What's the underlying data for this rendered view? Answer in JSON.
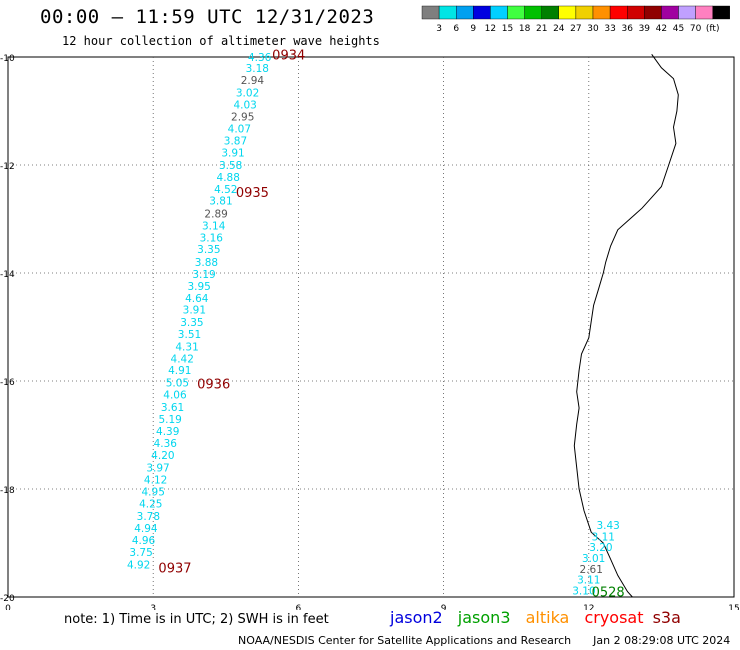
{
  "title": "00:00 – 11:59 UTC 12/31/2023",
  "subtitle": "12 hour collection of altimeter wave heights",
  "colorbar": {
    "colors": [
      "#7f7f7f",
      "#00e5e5",
      "#00a0f0",
      "#0000e0",
      "#00d0ff",
      "#40ff40",
      "#00c000",
      "#008000",
      "#ffff00",
      "#f0d000",
      "#ff9000",
      "#ff0000",
      "#d00000",
      "#900000",
      "#a000a0",
      "#c0a0ff",
      "#ff80c0",
      "#000000"
    ],
    "labels": [
      "3",
      "6",
      "9",
      "12",
      "15",
      "18",
      "21",
      "24",
      "27",
      "30",
      "33",
      "36",
      "39",
      "42",
      "45",
      "70",
      "(ft)"
    ]
  },
  "axes": {
    "x_ticks": [
      "0",
      "3",
      "6",
      "9",
      "12",
      "15"
    ],
    "y_ticks": [
      "-10",
      "-12",
      "-14",
      "-16",
      "-18",
      "-20"
    ]
  },
  "track1": [
    {
      "lon": 5.2,
      "lat": -10.0,
      "v": "4.36",
      "c": "cyan"
    },
    {
      "lon": 5.15,
      "lat": -10.2,
      "v": "3.18",
      "c": "cyan"
    },
    {
      "lon": 5.05,
      "lat": -10.43,
      "v": "2.94",
      "c": "gray"
    },
    {
      "lon": 4.95,
      "lat": -10.66,
      "v": "3.02",
      "c": "cyan"
    },
    {
      "lon": 4.9,
      "lat": -10.88,
      "v": "4.03",
      "c": "cyan"
    },
    {
      "lon": 4.85,
      "lat": -11.1,
      "v": "2.95",
      "c": "gray"
    },
    {
      "lon": 4.78,
      "lat": -11.32,
      "v": "4.07",
      "c": "cyan"
    },
    {
      "lon": 4.7,
      "lat": -11.55,
      "v": "3.87",
      "c": "cyan"
    },
    {
      "lon": 4.65,
      "lat": -11.77,
      "v": "3.91",
      "c": "cyan"
    },
    {
      "lon": 4.6,
      "lat": -12.0,
      "v": "3.58",
      "c": "cyan"
    },
    {
      "lon": 4.55,
      "lat": -12.22,
      "v": "4.88",
      "c": "cyan"
    },
    {
      "lon": 4.5,
      "lat": -12.44,
      "v": "4.52",
      "c": "cyan"
    },
    {
      "lon": 4.4,
      "lat": -12.66,
      "v": "3.81",
      "c": "cyan"
    },
    {
      "lon": 4.3,
      "lat": -12.9,
      "v": "2.89",
      "c": "gray"
    },
    {
      "lon": 4.25,
      "lat": -13.12,
      "v": "3.14",
      "c": "cyan"
    },
    {
      "lon": 4.2,
      "lat": -13.34,
      "v": "3.16",
      "c": "cyan"
    },
    {
      "lon": 4.15,
      "lat": -13.56,
      "v": "3.35",
      "c": "cyan"
    },
    {
      "lon": 4.1,
      "lat": -13.8,
      "v": "3.88",
      "c": "cyan"
    },
    {
      "lon": 4.05,
      "lat": -14.02,
      "v": "3.19",
      "c": "cyan"
    },
    {
      "lon": 3.95,
      "lat": -14.24,
      "v": "3.95",
      "c": "cyan"
    },
    {
      "lon": 3.9,
      "lat": -14.46,
      "v": "4.64",
      "c": "cyan"
    },
    {
      "lon": 3.85,
      "lat": -14.68,
      "v": "3.91",
      "c": "cyan"
    },
    {
      "lon": 3.8,
      "lat": -14.91,
      "v": "3.35",
      "c": "cyan"
    },
    {
      "lon": 3.75,
      "lat": -15.13,
      "v": "3.51",
      "c": "cyan"
    },
    {
      "lon": 3.7,
      "lat": -15.36,
      "v": "4.31",
      "c": "cyan"
    },
    {
      "lon": 3.6,
      "lat": -15.58,
      "v": "4.42",
      "c": "cyan"
    },
    {
      "lon": 3.55,
      "lat": -15.8,
      "v": "4.91",
      "c": "cyan"
    },
    {
      "lon": 3.5,
      "lat": -16.03,
      "v": "5.05",
      "c": "cyan"
    },
    {
      "lon": 3.45,
      "lat": -16.25,
      "v": "4.06",
      "c": "cyan"
    },
    {
      "lon": 3.4,
      "lat": -16.48,
      "v": "3.61",
      "c": "cyan"
    },
    {
      "lon": 3.35,
      "lat": -16.7,
      "v": "5.19",
      "c": "cyan"
    },
    {
      "lon": 3.3,
      "lat": -16.93,
      "v": "4.39",
      "c": "cyan"
    },
    {
      "lon": 3.25,
      "lat": -17.15,
      "v": "4.36",
      "c": "cyan"
    },
    {
      "lon": 3.2,
      "lat": -17.37,
      "v": "4.20",
      "c": "cyan"
    },
    {
      "lon": 3.1,
      "lat": -17.6,
      "v": "3.97",
      "c": "cyan"
    },
    {
      "lon": 3.05,
      "lat": -17.82,
      "v": "4.12",
      "c": "cyan"
    },
    {
      "lon": 3.0,
      "lat": -18.05,
      "v": "4.95",
      "c": "cyan"
    },
    {
      "lon": 2.95,
      "lat": -18.27,
      "v": "4.25",
      "c": "cyan"
    },
    {
      "lon": 2.9,
      "lat": -18.5,
      "v": "3.78",
      "c": "cyan"
    },
    {
      "lon": 2.85,
      "lat": -18.72,
      "v": "4.94",
      "c": "cyan"
    },
    {
      "lon": 2.8,
      "lat": -18.94,
      "v": "4.96",
      "c": "cyan"
    },
    {
      "lon": 2.75,
      "lat": -19.17,
      "v": "3.75",
      "c": "cyan"
    },
    {
      "lon": 2.7,
      "lat": -19.4,
      "v": "4.92",
      "c": "cyan"
    }
  ],
  "track1_times": [
    {
      "lon": 5.8,
      "lat": -9.95,
      "t": "0934"
    },
    {
      "lon": 5.05,
      "lat": -12.5,
      "t": "0935"
    },
    {
      "lon": 4.25,
      "lat": -16.05,
      "t": "0936"
    },
    {
      "lon": 3.45,
      "lat": -19.45,
      "t": "0937"
    }
  ],
  "track2": [
    {
      "lon": 12.4,
      "lat": -18.67,
      "v": "3.43",
      "c": "cyan"
    },
    {
      "lon": 12.3,
      "lat": -18.88,
      "v": "3.11",
      "c": "cyan"
    },
    {
      "lon": 12.25,
      "lat": -19.07,
      "v": "3.20",
      "c": "cyan"
    },
    {
      "lon": 12.1,
      "lat": -19.28,
      "v": "3.01",
      "c": "cyan"
    },
    {
      "lon": 12.05,
      "lat": -19.48,
      "v": "2.61",
      "c": "gray"
    },
    {
      "lon": 12.0,
      "lat": -19.68,
      "v": "3.11",
      "c": "cyan"
    },
    {
      "lon": 11.9,
      "lat": -19.88,
      "v": "3.10",
      "c": "cyan"
    }
  ],
  "track2_times": [
    {
      "lon": 12.4,
      "lat": -19.9,
      "t": "0528"
    }
  ],
  "coast": [
    [
      13.3,
      -9.95
    ],
    [
      13.5,
      -10.2
    ],
    [
      13.75,
      -10.4
    ],
    [
      13.85,
      -10.7
    ],
    [
      13.82,
      -11.0
    ],
    [
      13.75,
      -11.3
    ],
    [
      13.8,
      -11.6
    ],
    [
      13.65,
      -12.0
    ],
    [
      13.5,
      -12.4
    ],
    [
      13.3,
      -12.6
    ],
    [
      13.1,
      -12.8
    ],
    [
      12.85,
      -13.0
    ],
    [
      12.6,
      -13.2
    ],
    [
      12.45,
      -13.5
    ],
    [
      12.35,
      -13.8
    ],
    [
      12.3,
      -14.0
    ],
    [
      12.2,
      -14.3
    ],
    [
      12.1,
      -14.6
    ],
    [
      12.05,
      -14.9
    ],
    [
      12.0,
      -15.2
    ],
    [
      11.85,
      -15.5
    ],
    [
      11.8,
      -15.8
    ],
    [
      11.75,
      -16.2
    ],
    [
      11.8,
      -16.5
    ],
    [
      11.75,
      -16.8
    ],
    [
      11.7,
      -17.2
    ],
    [
      11.75,
      -17.6
    ],
    [
      11.8,
      -18.0
    ],
    [
      11.9,
      -18.4
    ],
    [
      12.05,
      -18.8
    ],
    [
      12.3,
      -19.0
    ],
    [
      12.45,
      -19.3
    ],
    [
      12.6,
      -19.6
    ],
    [
      12.8,
      -19.9
    ],
    [
      12.9,
      -20.0
    ]
  ],
  "note": "note: 1) Time is in UTC; 2) SWH is in feet",
  "legend": [
    {
      "name": "jason2",
      "color": "#0000dd"
    },
    {
      "name": "jason3",
      "color": "#00a000"
    },
    {
      "name": "altika",
      "color": "#ff9000"
    },
    {
      "name": "cryosat",
      "color": "#ff0000"
    },
    {
      "name": "s3a",
      "color": "#900000"
    }
  ],
  "credit": "NOAA/NESDIS Center for Satellite Applications and Research",
  "timestamp": "Jan  2 08:29:08 UTC 2024"
}
